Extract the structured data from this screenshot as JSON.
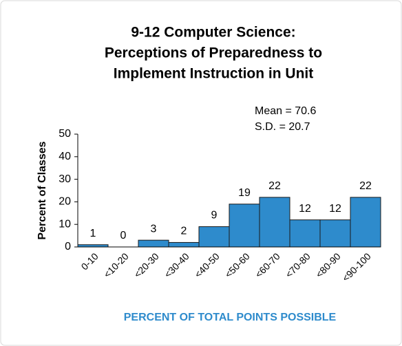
{
  "chart_data": {
    "type": "bar",
    "title": [
      "9-12 Computer Science:",
      "Perceptions of Preparedness to",
      "Implement Instruction in Unit"
    ],
    "annotations": [
      "Mean = 70.6",
      "S.D. = 20.7"
    ],
    "y_label": "Percent of Classes",
    "x_label": "PERCENT OF TOTAL POINTS POSSIBLE",
    "categories": [
      "0-10",
      "<10-20",
      "<20-30",
      "<30-40",
      "<40-50",
      "<50-60",
      "<60-70",
      "<70-80",
      "<80-90",
      "<90-100"
    ],
    "values": [
      1,
      0,
      3,
      2,
      9,
      19,
      22,
      12,
      12,
      22
    ],
    "color": "#2e8bcc",
    "ylim": [
      0,
      50
    ],
    "yticks": [
      0,
      10,
      20,
      30,
      40,
      50
    ],
    "grid": false
  }
}
